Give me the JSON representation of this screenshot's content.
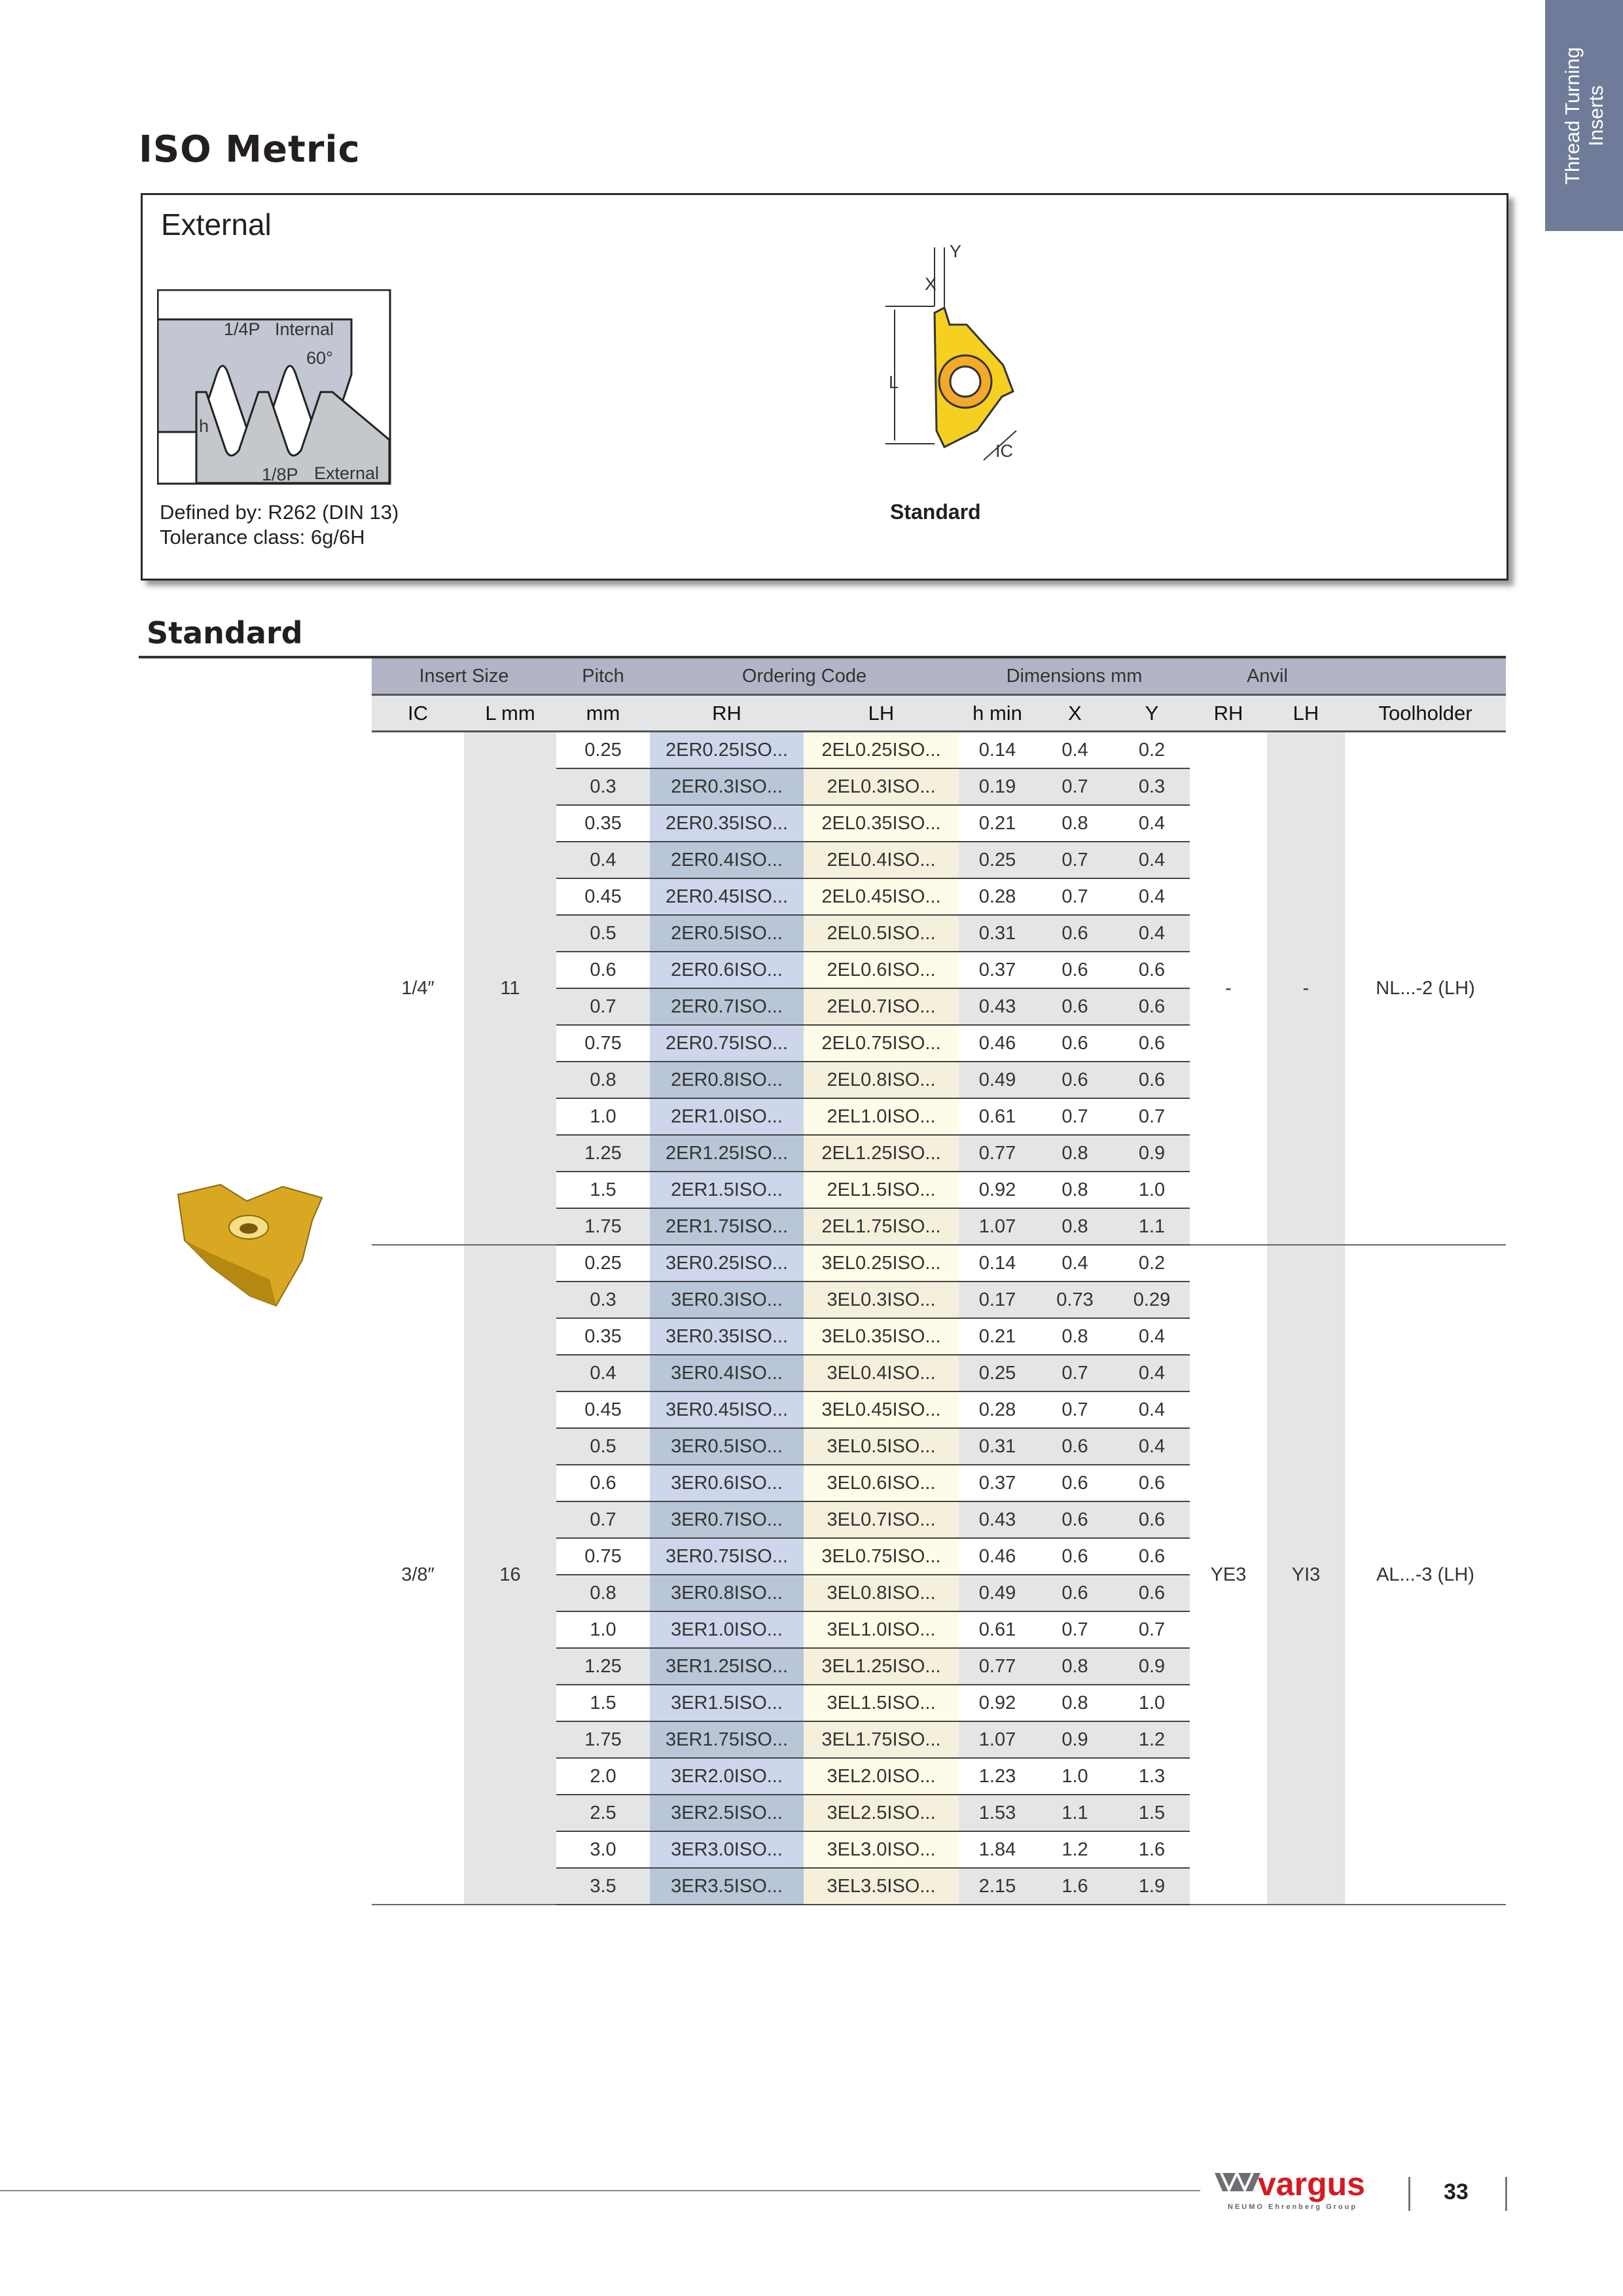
{
  "side_tab": {
    "line1": "Thread Turning",
    "line2": "Inserts"
  },
  "page_title": "ISO Metric",
  "external_box": {
    "title": "External",
    "thread_labels": {
      "quarter_p": "1/4P",
      "internal": "Internal",
      "angle": "60°",
      "h": "h",
      "eighth_p": "1/8P",
      "external": "External"
    },
    "insert_labels": {
      "x": "X",
      "y": "Y",
      "l": "L",
      "ic": "IC"
    },
    "defined_by": "Defined by: R262 (DIN 13)",
    "tolerance": "Tolerance class: 6g/6H",
    "caption": "Standard"
  },
  "section_heading": "Standard",
  "table": {
    "group_headers": [
      "Insert Size",
      "Pitch",
      "Ordering Code",
      "Dimensions mm",
      "Anvil",
      ""
    ],
    "col_headers": [
      "IC",
      "L mm",
      "mm",
      "RH",
      "LH",
      "h min",
      "X",
      "Y",
      "RH",
      "LH",
      "Toolholder"
    ],
    "groups": [
      {
        "ic": "1/4″",
        "l": "11",
        "anvil_rh": "-",
        "anvil_lh": "-",
        "toolholder": "NL...-2 (LH)",
        "rows": [
          [
            "0.25",
            "2ER0.25ISO...",
            "2EL0.25ISO...",
            "0.14",
            "0.4",
            "0.2"
          ],
          [
            "0.3",
            "2ER0.3ISO...",
            "2EL0.3ISO...",
            "0.19",
            "0.7",
            "0.3"
          ],
          [
            "0.35",
            "2ER0.35ISO...",
            "2EL0.35ISO...",
            "0.21",
            "0.8",
            "0.4"
          ],
          [
            "0.4",
            "2ER0.4ISO...",
            "2EL0.4ISO...",
            "0.25",
            "0.7",
            "0.4"
          ],
          [
            "0.45",
            "2ER0.45ISO...",
            "2EL0.45ISO...",
            "0.28",
            "0.7",
            "0.4"
          ],
          [
            "0.5",
            "2ER0.5ISO...",
            "2EL0.5ISO...",
            "0.31",
            "0.6",
            "0.4"
          ],
          [
            "0.6",
            "2ER0.6ISO...",
            "2EL0.6ISO...",
            "0.37",
            "0.6",
            "0.6"
          ],
          [
            "0.7",
            "2ER0.7ISO...",
            "2EL0.7ISO...",
            "0.43",
            "0.6",
            "0.6"
          ],
          [
            "0.75",
            "2ER0.75ISO...",
            "2EL0.75ISO...",
            "0.46",
            "0.6",
            "0.6"
          ],
          [
            "0.8",
            "2ER0.8ISO...",
            "2EL0.8ISO...",
            "0.49",
            "0.6",
            "0.6"
          ],
          [
            "1.0",
            "2ER1.0ISO...",
            "2EL1.0ISO...",
            "0.61",
            "0.7",
            "0.7"
          ],
          [
            "1.25",
            "2ER1.25ISO...",
            "2EL1.25ISO...",
            "0.77",
            "0.8",
            "0.9"
          ],
          [
            "1.5",
            "2ER1.5ISO...",
            "2EL1.5ISO...",
            "0.92",
            "0.8",
            "1.0"
          ],
          [
            "1.75",
            "2ER1.75ISO...",
            "2EL1.75ISO...",
            "1.07",
            "0.8",
            "1.1"
          ]
        ]
      },
      {
        "ic": "3/8″",
        "l": "16",
        "anvil_rh": "YE3",
        "anvil_lh": "YI3",
        "toolholder": "AL...-3 (LH)",
        "rows": [
          [
            "0.25",
            "3ER0.25ISO...",
            "3EL0.25ISO...",
            "0.14",
            "0.4",
            "0.2"
          ],
          [
            "0.3",
            "3ER0.3ISO...",
            "3EL0.3ISO...",
            "0.17",
            "0.73",
            "0.29"
          ],
          [
            "0.35",
            "3ER0.35ISO...",
            "3EL0.35ISO...",
            "0.21",
            "0.8",
            "0.4"
          ],
          [
            "0.4",
            "3ER0.4ISO...",
            "3EL0.4ISO...",
            "0.25",
            "0.7",
            "0.4"
          ],
          [
            "0.45",
            "3ER0.45ISO...",
            "3EL0.45ISO...",
            "0.28",
            "0.7",
            "0.4"
          ],
          [
            "0.5",
            "3ER0.5ISO...",
            "3EL0.5ISO...",
            "0.31",
            "0.6",
            "0.4"
          ],
          [
            "0.6",
            "3ER0.6ISO...",
            "3EL0.6ISO...",
            "0.37",
            "0.6",
            "0.6"
          ],
          [
            "0.7",
            "3ER0.7ISO...",
            "3EL0.7ISO...",
            "0.43",
            "0.6",
            "0.6"
          ],
          [
            "0.75",
            "3ER0.75ISO...",
            "3EL0.75ISO...",
            "0.46",
            "0.6",
            "0.6"
          ],
          [
            "0.8",
            "3ER0.8ISO...",
            "3EL0.8ISO...",
            "0.49",
            "0.6",
            "0.6"
          ],
          [
            "1.0",
            "3ER1.0ISO...",
            "3EL1.0ISO...",
            "0.61",
            "0.7",
            "0.7"
          ],
          [
            "1.25",
            "3ER1.25ISO...",
            "3EL1.25ISO...",
            "0.77",
            "0.8",
            "0.9"
          ],
          [
            "1.5",
            "3ER1.5ISO...",
            "3EL1.5ISO...",
            "0.92",
            "0.8",
            "1.0"
          ],
          [
            "1.75",
            "3ER1.75ISO...",
            "3EL1.75ISO...",
            "1.07",
            "0.9",
            "1.2"
          ],
          [
            "2.0",
            "3ER2.0ISO...",
            "3EL2.0ISO...",
            "1.23",
            "1.0",
            "1.3"
          ],
          [
            "2.5",
            "3ER2.5ISO...",
            "3EL2.5ISO...",
            "1.53",
            "1.1",
            "1.5"
          ],
          [
            "3.0",
            "3ER3.0ISO...",
            "3EL3.0ISO...",
            "1.84",
            "1.2",
            "1.6"
          ],
          [
            "3.5",
            "3ER3.5ISO...",
            "3EL3.5ISO...",
            "2.15",
            "1.6",
            "1.9"
          ]
        ]
      }
    ]
  },
  "footer": {
    "brand": "vargus",
    "brand_sub": "NEUMO Ehrenberg Group",
    "page_number": "33"
  },
  "colors": {
    "side_tab": "#6f7b98",
    "header_band": "#b3b4c6",
    "rh_column": "#cdd6ea",
    "lh_column": "#fefce8",
    "insert_gold": "#f5d020",
    "brand_red": "#d71920"
  }
}
